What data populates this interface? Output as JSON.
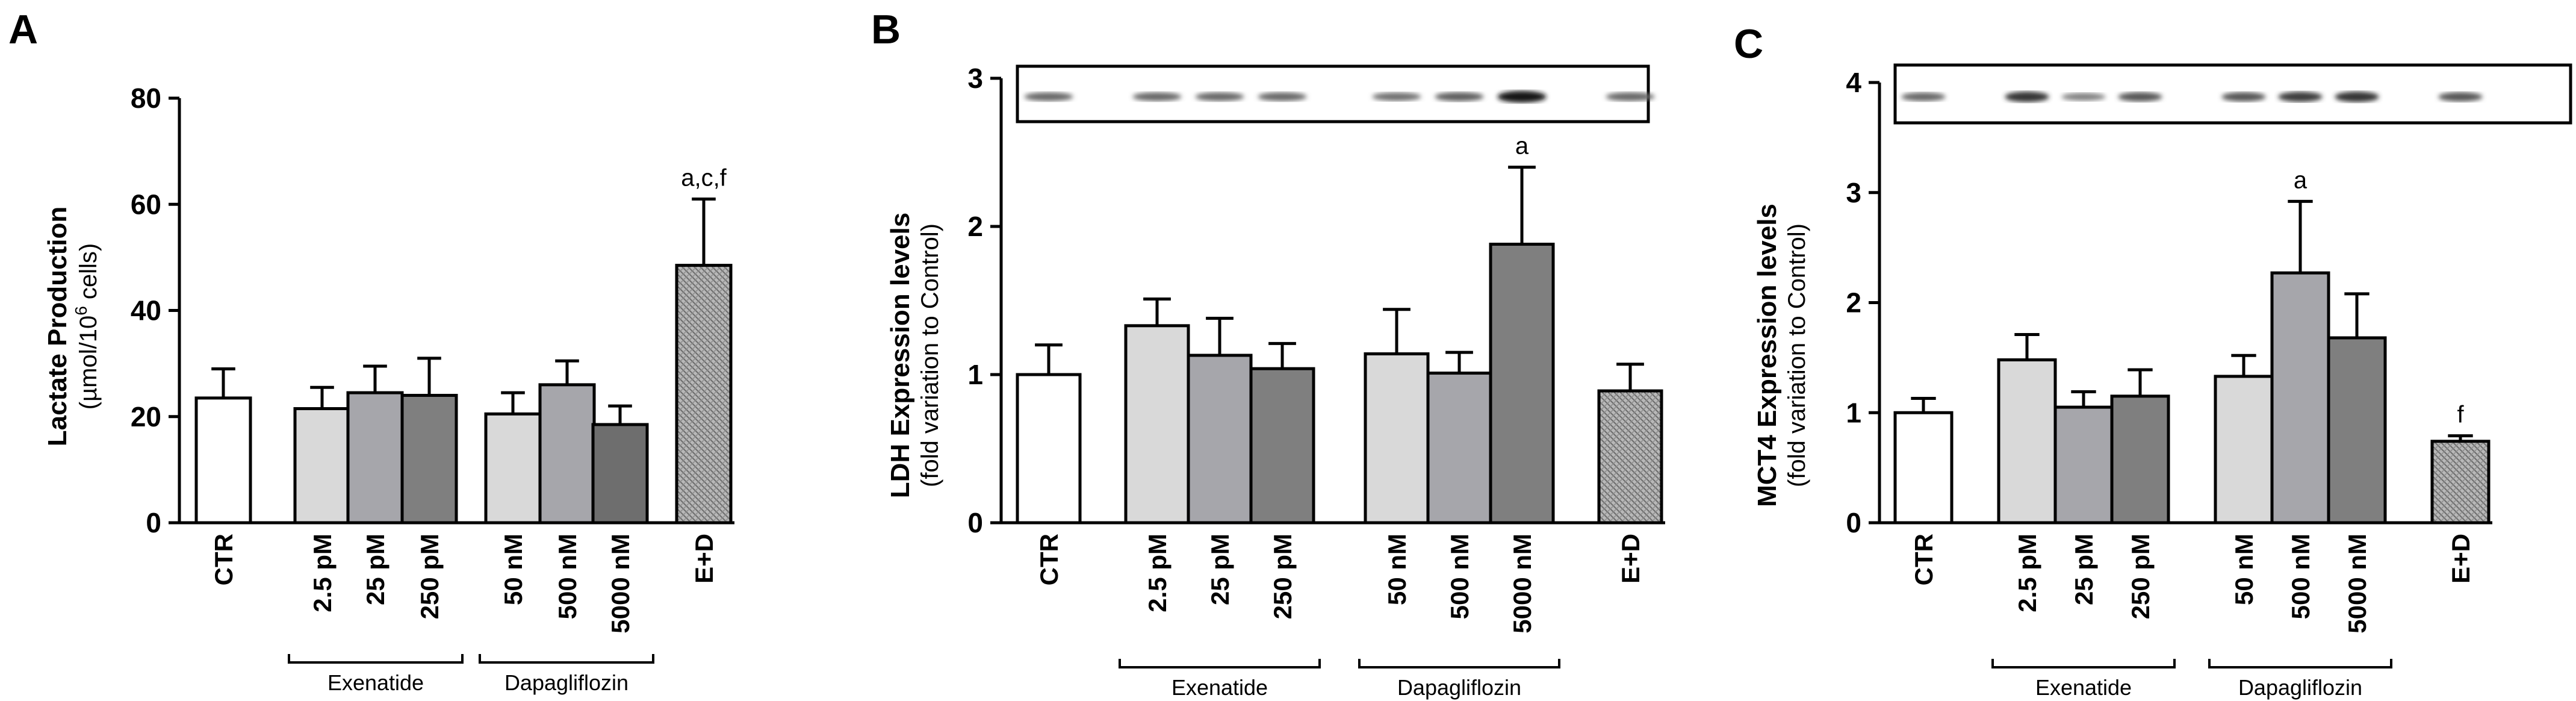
{
  "chart_data": [
    {
      "panel": "A",
      "type": "bar",
      "ylabel": "Lactate Production",
      "ylabel_sub_prefix": "(µmol/10",
      "ylabel_sub_sup": "6",
      "ylabel_sub_suffix": " cells)",
      "ylim": [
        0,
        80
      ],
      "yticks": [
        "0",
        "20",
        "40",
        "60",
        "80"
      ],
      "categories": [
        "CTR",
        "2.5 pM",
        "25 pM",
        "250 pM",
        "50 nM",
        "500 nM",
        "5000 nM",
        "E+D"
      ],
      "values": [
        23.5,
        21.5,
        24.5,
        24,
        20.5,
        26,
        18.5,
        48.5
      ],
      "errors": [
        5.5,
        4,
        5,
        7,
        4,
        4.5,
        3.5,
        12.5
      ],
      "fills": [
        "#ffffff",
        "#d9d9d9",
        "#a6a6ab",
        "#7f7f7f",
        "#d9d9d9",
        "#a6a6ab",
        "#6e6e6e",
        "hatch"
      ],
      "annotations": [
        {
          "index": 7,
          "text": "a,c,f"
        }
      ],
      "groups": [
        {
          "name": "Exenatide",
          "from": 1,
          "to": 3
        },
        {
          "name": "Dapagliflozin",
          "from": 4,
          "to": 6
        }
      ],
      "blot": false
    },
    {
      "panel": "B",
      "type": "bar",
      "ylabel": "LDH Expression levels",
      "ylabel_sub": "(fold variation to Control)",
      "ylim": [
        0,
        3
      ],
      "yticks": [
        "0",
        "1",
        "2",
        "3"
      ],
      "categories": [
        "CTR",
        "2.5 pM",
        "25 pM",
        "250 pM",
        "50 nM",
        "500 nM",
        "5000 nM",
        "E+D"
      ],
      "values": [
        1.0,
        1.33,
        1.13,
        1.04,
        1.14,
        1.01,
        1.88,
        0.89
      ],
      "errors": [
        0.2,
        0.18,
        0.25,
        0.17,
        0.3,
        0.14,
        0.52,
        0.18
      ],
      "fills": [
        "#ffffff",
        "#d9d9d9",
        "#a6a6ab",
        "#7f7f7f",
        "#d9d9d9",
        "#a6a6ab",
        "#7f7f7f",
        "hatch"
      ],
      "annotations": [
        {
          "index": 6,
          "text": "a"
        }
      ],
      "groups": [
        {
          "name": "Exenatide",
          "from": 1,
          "to": 3
        },
        {
          "name": "Dapagliflozin",
          "from": 4,
          "to": 6
        }
      ],
      "blot": true,
      "blot_intensity": [
        0.45,
        0.45,
        0.45,
        0.45,
        0.4,
        0.5,
        0.95,
        0.45
      ]
    },
    {
      "panel": "C",
      "type": "bar",
      "ylabel": "MCT4 Expression levels",
      "ylabel_sub": "(fold variation to Control)",
      "ylim": [
        0,
        4
      ],
      "yticks": [
        "0",
        "1",
        "2",
        "3",
        "4"
      ],
      "categories": [
        "CTR",
        "2.5 pM",
        "25 pM",
        "250 pM",
        "50 nM",
        "500 nM",
        "5000 nM",
        "E+D"
      ],
      "values": [
        1.0,
        1.48,
        1.05,
        1.15,
        1.33,
        2.27,
        1.68,
        0.74
      ],
      "errors": [
        0.13,
        0.23,
        0.14,
        0.24,
        0.19,
        0.65,
        0.4,
        0.05
      ],
      "fills": [
        "#ffffff",
        "#d9d9d9",
        "#a6a6ab",
        "#7f7f7f",
        "#d9d9d9",
        "#a6a6ab",
        "#7f7f7f",
        "hatch"
      ],
      "annotations": [
        {
          "index": 5,
          "text": "a"
        },
        {
          "index": 7,
          "text": "f"
        }
      ],
      "groups": [
        {
          "name": "Exenatide",
          "from": 1,
          "to": 3
        },
        {
          "name": "Dapagliflozin",
          "from": 4,
          "to": 6
        }
      ],
      "blot": true,
      "blot_intensity": [
        0.45,
        0.75,
        0.3,
        0.55,
        0.55,
        0.7,
        0.75,
        0.55
      ]
    }
  ]
}
